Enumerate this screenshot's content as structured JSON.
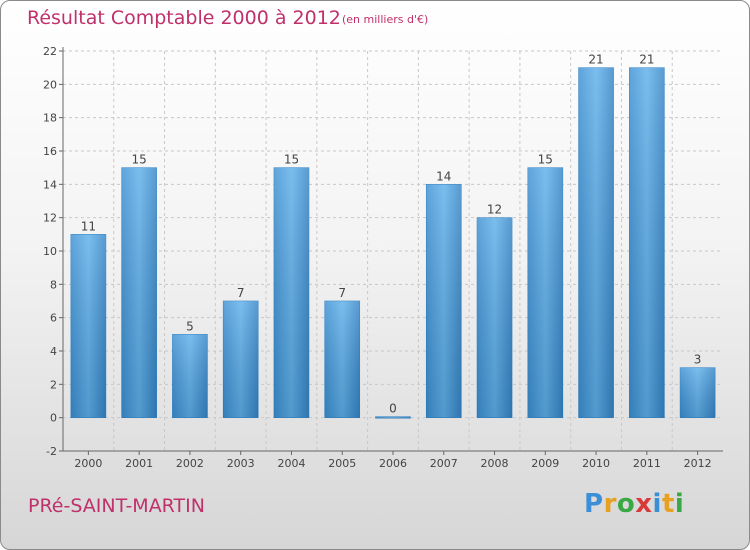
{
  "header": {
    "title": "Résultat Comptable 2000 à 2012",
    "subtitle": "(en milliers d'€)"
  },
  "footer": {
    "commune": "PRé-SAINT-MARTIN",
    "logo_letters": [
      {
        "ch": "P",
        "color": "#3a8fd6"
      },
      {
        "ch": "r",
        "color": "#e8a020"
      },
      {
        "ch": "o",
        "color": "#3aa844"
      },
      {
        "ch": "x",
        "color": "#d83a3a"
      },
      {
        "ch": "i",
        "color": "#3a8fd6"
      },
      {
        "ch": "t",
        "color": "#e8a020"
      },
      {
        "ch": "i",
        "color": "#3aa844"
      }
    ]
  },
  "chart_data": {
    "type": "bar",
    "title": "Résultat Comptable 2000 à 2012",
    "subtitle": "(en milliers d'€)",
    "categories": [
      "2000",
      "2001",
      "2002",
      "2003",
      "2004",
      "2005",
      "2006",
      "2007",
      "2008",
      "2009",
      "2010",
      "2011",
      "2012"
    ],
    "values": [
      11,
      15,
      5,
      7,
      15,
      7,
      0,
      14,
      12,
      15,
      21,
      21,
      3
    ],
    "ylim": [
      -2,
      22
    ],
    "yticks": [
      -2,
      0,
      2,
      4,
      6,
      8,
      10,
      12,
      14,
      16,
      18,
      20,
      22
    ],
    "grid": true,
    "bar_color": "#4a9fdf",
    "bar_color_dark": "#2a78b8"
  }
}
